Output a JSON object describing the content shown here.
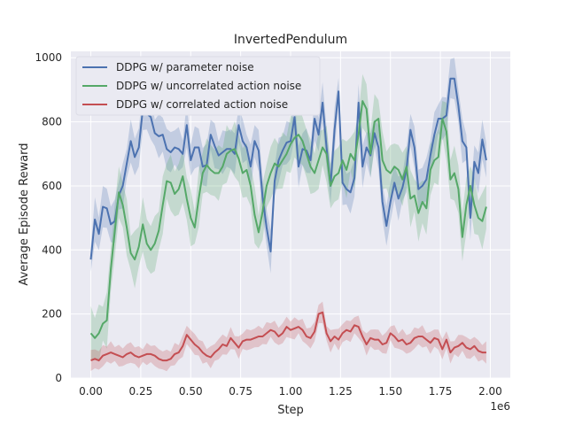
{
  "chart_data": {
    "type": "line",
    "title": "InvertedPendulum",
    "xlabel": "Step",
    "ylabel": "Average Episode Reward",
    "x_offset_label": "1e6",
    "xlim": [
      -0.1,
      2.1
    ],
    "ylim": [
      0,
      1020
    ],
    "xticks": [
      0.0,
      0.25,
      0.5,
      0.75,
      1.0,
      1.25,
      1.5,
      1.75,
      2.0
    ],
    "xtick_labels": [
      "0.00",
      "0.25",
      "0.50",
      "0.75",
      "1.00",
      "1.25",
      "1.50",
      "1.75",
      "2.00"
    ],
    "yticks": [
      0,
      200,
      400,
      600,
      800,
      1000
    ],
    "ytick_labels": [
      "0",
      "200",
      "400",
      "600",
      "800",
      "1000"
    ],
    "grid": true,
    "legend_position": "top-left",
    "x": [
      0.0,
      0.02,
      0.04,
      0.06,
      0.08,
      0.1,
      0.12,
      0.14,
      0.16,
      0.18,
      0.2,
      0.22,
      0.24,
      0.26,
      0.28,
      0.3,
      0.32,
      0.34,
      0.36,
      0.38,
      0.4,
      0.42,
      0.44,
      0.46,
      0.48,
      0.5,
      0.52,
      0.54,
      0.56,
      0.58,
      0.6,
      0.62,
      0.64,
      0.66,
      0.68,
      0.7,
      0.72,
      0.74,
      0.76,
      0.78,
      0.8,
      0.82,
      0.84,
      0.86,
      0.88,
      0.9,
      0.92,
      0.94,
      0.96,
      0.98,
      1.0,
      1.02,
      1.04,
      1.06,
      1.08,
      1.1,
      1.12,
      1.14,
      1.16,
      1.18,
      1.2,
      1.22,
      1.24,
      1.26,
      1.28,
      1.3,
      1.32,
      1.34,
      1.36,
      1.38,
      1.4,
      1.42,
      1.44,
      1.46,
      1.48,
      1.5,
      1.52,
      1.54,
      1.56,
      1.58,
      1.6,
      1.62,
      1.64,
      1.66,
      1.68,
      1.7,
      1.72,
      1.74,
      1.76,
      1.78,
      1.8,
      1.82,
      1.84,
      1.86,
      1.88,
      1.9,
      1.92,
      1.94,
      1.96,
      1.98
    ],
    "series": [
      {
        "name": "DDPG w/ parameter noise",
        "color": "#4c72b0",
        "values": [
          370,
          495,
          450,
          535,
          530,
          480,
          490,
          570,
          600,
          670,
          740,
          690,
          720,
          840,
          825,
          815,
          765,
          755,
          760,
          715,
          705,
          720,
          715,
          700,
          790,
          680,
          720,
          720,
          660,
          665,
          760,
          725,
          695,
          705,
          715,
          715,
          700,
          790,
          740,
          720,
          660,
          740,
          710,
          565,
          470,
          395,
          615,
          680,
          710,
          735,
          740,
          815,
          660,
          715,
          710,
          680,
          810,
          760,
          860,
          720,
          600,
          775,
          895,
          610,
          590,
          580,
          625,
          860,
          660,
          720,
          695,
          765,
          720,
          550,
          475,
          550,
          610,
          560,
          595,
          650,
          775,
          720,
          590,
          600,
          620,
          695,
          760,
          810,
          810,
          820,
          935,
          935,
          850,
          740,
          720,
          500,
          675,
          640,
          745,
          680
        ]
      },
      {
        "name": "DDPG w/ uncorrelated action noise",
        "color": "#55a868",
        "values": [
          140,
          125,
          140,
          170,
          180,
          340,
          460,
          580,
          540,
          470,
          390,
          370,
          410,
          480,
          420,
          400,
          420,
          460,
          540,
          615,
          610,
          575,
          590,
          630,
          560,
          500,
          470,
          560,
          640,
          665,
          650,
          640,
          640,
          660,
          700,
          710,
          715,
          685,
          640,
          650,
          600,
          510,
          455,
          520,
          600,
          640,
          670,
          660,
          680,
          700,
          730,
          750,
          760,
          740,
          700,
          660,
          640,
          680,
          720,
          700,
          600,
          630,
          640,
          680,
          650,
          700,
          680,
          760,
          865,
          840,
          700,
          800,
          810,
          680,
          650,
          640,
          660,
          650,
          620,
          660,
          560,
          570,
          515,
          550,
          530,
          650,
          680,
          690,
          810,
          770,
          620,
          640,
          590,
          440,
          540,
          600,
          540,
          500,
          490,
          535
        ]
      },
      {
        "name": "DDPG w/ correlated action noise",
        "color": "#c44e52",
        "values": [
          55,
          60,
          55,
          70,
          75,
          80,
          75,
          70,
          65,
          75,
          80,
          70,
          65,
          70,
          75,
          75,
          70,
          60,
          55,
          55,
          60,
          75,
          80,
          100,
          135,
          120,
          105,
          95,
          80,
          70,
          65,
          80,
          90,
          105,
          100,
          125,
          110,
          95,
          115,
          120,
          120,
          125,
          130,
          130,
          140,
          150,
          145,
          130,
          140,
          160,
          150,
          155,
          160,
          150,
          130,
          125,
          145,
          200,
          205,
          140,
          115,
          130,
          120,
          140,
          150,
          145,
          165,
          160,
          130,
          105,
          125,
          120,
          120,
          105,
          110,
          140,
          130,
          115,
          120,
          105,
          110,
          125,
          130,
          130,
          120,
          110,
          125,
          120,
          90,
          120,
          80,
          95,
          100,
          110,
          95,
          90,
          100,
          85,
          80,
          80
        ]
      }
    ]
  }
}
